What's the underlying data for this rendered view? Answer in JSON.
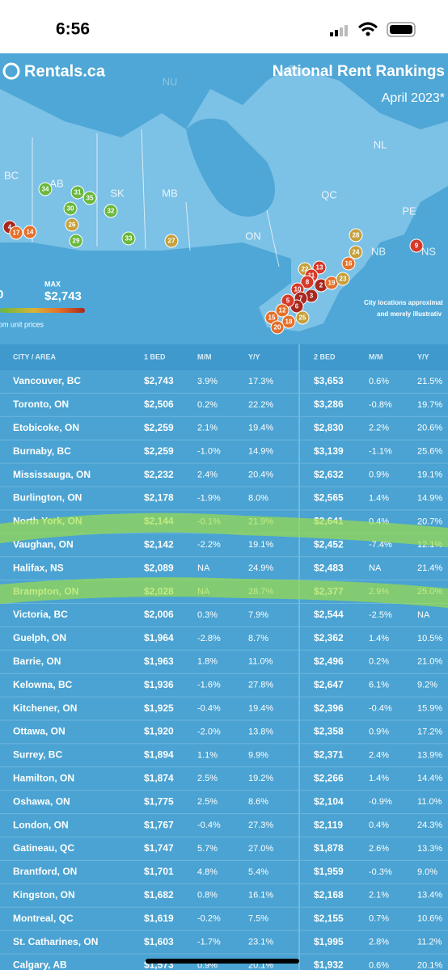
{
  "status_bar": {
    "time": "6:56"
  },
  "header": {
    "brand": "Rentals.ca",
    "title": "National Rent Rankings",
    "subtitle": "April 2023*"
  },
  "map": {
    "regions": [
      "NU",
      "BC",
      "AB",
      "SK",
      "MB",
      "ON",
      "QC",
      "NL",
      "PE",
      "NB",
      "NS"
    ],
    "markers": [
      "34",
      "31",
      "35",
      "30",
      "32",
      "26",
      "29",
      "33",
      "27",
      "4",
      "17",
      "14",
      "28",
      "24",
      "16",
      "9",
      "22",
      "13",
      "11",
      "8",
      "2",
      "19",
      "23",
      "10",
      "3",
      "7",
      "6",
      "5",
      "12",
      "15",
      "18",
      "25",
      "20"
    ]
  },
  "legend": {
    "min": "0",
    "max_label": "MAX",
    "max_value": "$2,743",
    "caption": "om unit prices",
    "note_1": "City locations approximat",
    "note_2": "and merely illustrativ"
  },
  "table": {
    "headers": [
      "CITY / AREA",
      "1 BED",
      "M/M",
      "Y/Y",
      "2 BED",
      "M/M",
      "Y/Y"
    ],
    "rows": [
      [
        "Vancouver, BC",
        "$2,743",
        "3.9%",
        "17.3%",
        "$3,653",
        "0.6%",
        "21.5%"
      ],
      [
        "Toronto, ON",
        "$2,506",
        "0.2%",
        "22.2%",
        "$3,286",
        "-0.8%",
        "19.7%"
      ],
      [
        "Etobicoke, ON",
        "$2,259",
        "2.1%",
        "19.4%",
        "$2,830",
        "2.2%",
        "20.6%"
      ],
      [
        "Burnaby, BC",
        "$2,259",
        "-1.0%",
        "14.9%",
        "$3,139",
        "-1.1%",
        "25.6%"
      ],
      [
        "Mississauga, ON",
        "$2,232",
        "2.4%",
        "20.4%",
        "$2,632",
        "0.9%",
        "19.1%"
      ],
      [
        "Burlington, ON",
        "$2,178",
        "-1.9%",
        "8.0%",
        "$2,565",
        "1.4%",
        "14.9%"
      ],
      [
        "North York, ON",
        "$2,144",
        "-0.1%",
        "21.9%",
        "$2,641",
        "0.4%",
        "20.7%"
      ],
      [
        "Vaughan, ON",
        "$2,142",
        "-2.2%",
        "19.1%",
        "$2,452",
        "-7.4%",
        "12.1%"
      ],
      [
        "Halifax, NS",
        "$2,089",
        "NA",
        "24.9%",
        "$2,483",
        "NA",
        "21.4%"
      ],
      [
        "Brampton, ON",
        "$2,028",
        "NA",
        "28.7%",
        "$2,377",
        "2.9%",
        "25.0%"
      ],
      [
        "Victoria, BC",
        "$2,006",
        "0.3%",
        "7.9%",
        "$2,544",
        "-2.5%",
        "NA"
      ],
      [
        "Guelph, ON",
        "$1,964",
        "-2.8%",
        "8.7%",
        "$2,362",
        "1.4%",
        "10.5%"
      ],
      [
        "Barrie, ON",
        "$1,963",
        "1.8%",
        "11.0%",
        "$2,496",
        "0.2%",
        "21.0%"
      ],
      [
        "Kelowna, BC",
        "$1,936",
        "-1.6%",
        "27.8%",
        "$2,647",
        "6.1%",
        "9.2%"
      ],
      [
        "Kitchener, ON",
        "$1,925",
        "-0.4%",
        "19.4%",
        "$2,396",
        "-0.4%",
        "15.9%"
      ],
      [
        "Ottawa, ON",
        "$1,920",
        "-2.0%",
        "13.8%",
        "$2,358",
        "0.9%",
        "17.2%"
      ],
      [
        "Surrey, BC",
        "$1,894",
        "1.1%",
        "9.9%",
        "$2,371",
        "2.4%",
        "13.9%"
      ],
      [
        "Hamilton, ON",
        "$1,874",
        "2.5%",
        "19.2%",
        "$2,266",
        "1.4%",
        "14.4%"
      ],
      [
        "Oshawa, ON",
        "$1,775",
        "2.5%",
        "8.6%",
        "$2,104",
        "-0.9%",
        "11.0%"
      ],
      [
        "London, ON",
        "$1,767",
        "-0.4%",
        "27.3%",
        "$2,119",
        "0.4%",
        "24.3%"
      ],
      [
        "Gatineau, QC",
        "$1,747",
        "5.7%",
        "27.0%",
        "$1,878",
        "2.6%",
        "13.3%"
      ],
      [
        "Brantford, ON",
        "$1,701",
        "4.8%",
        "5.4%",
        "$1,959",
        "-0.3%",
        "9.0%"
      ],
      [
        "Kingston, ON",
        "$1,682",
        "0.8%",
        "16.1%",
        "$2,168",
        "2.1%",
        "13.4%"
      ],
      [
        "Montreal, QC",
        "$1,619",
        "-0.2%",
        "7.5%",
        "$2,155",
        "0.7%",
        "10.6%"
      ],
      [
        "St. Catharines, ON",
        "$1,603",
        "-1.7%",
        "23.1%",
        "$1,995",
        "2.8%",
        "11.2%"
      ],
      [
        "Calgary, AB",
        "$1,573",
        "0.9%",
        "20.1%",
        "$1,932",
        "0.6%",
        "20.1%"
      ]
    ]
  }
}
